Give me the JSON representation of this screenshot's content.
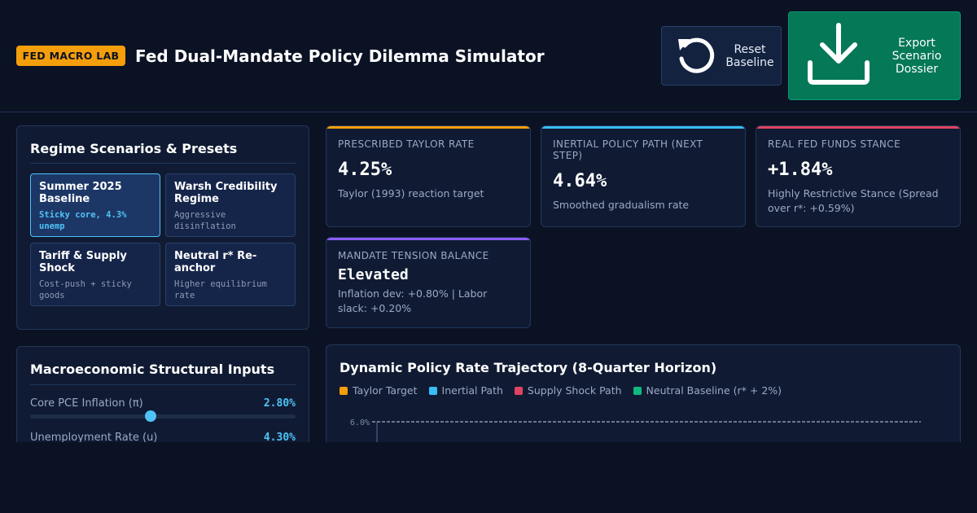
{
  "header": {
    "badge": "FED MACRO LAB",
    "title": "Fed Dual-Mandate Policy Dilemma Simulator",
    "reset_label": "Reset Baseline",
    "export_label": "Export Scenario Dossier"
  },
  "presets": {
    "title": "Regime Scenarios & Presets",
    "items": [
      {
        "name": "Summer 2025 Baseline",
        "desc": "Sticky core, 4.3% unemp",
        "active": true
      },
      {
        "name": "Warsh Credibility Regime",
        "desc": "Aggressive disinflation",
        "active": false
      },
      {
        "name": "Tariff & Supply Shock",
        "desc": "Cost-push + sticky goods",
        "active": false
      },
      {
        "name": "Neutral r* Re-anchor",
        "desc": "Higher equilibrium rate",
        "active": false
      }
    ]
  },
  "metrics": [
    {
      "label": "PRESCRIBED TAYLOR RATE",
      "value": "4.25%",
      "sub": "Taylor (1993) reaction target",
      "color": "#f59e0b"
    },
    {
      "label": "INERTIAL POLICY PATH (NEXT STEP)",
      "value": "4.64%",
      "sub": "Smoothed gradualism rate",
      "color": "#38bdf8"
    },
    {
      "label": "REAL FED FUNDS STANCE",
      "value": "+1.84%",
      "sub": "Highly Restrictive Stance (Spread over r*: +0.59%)",
      "color": "#e0435f"
    },
    {
      "label": "MANDATE TENSION BALANCE",
      "value": "Elevated",
      "sub": "Inflation dev: +0.80% | Labor slack: +0.20%",
      "color": "#8b5cf6"
    }
  ],
  "inputs": {
    "title": "Macroeconomic Structural Inputs",
    "sliders": [
      {
        "label": "Core PCE Inflation (π)",
        "value": "2.80%",
        "level": 0.455
      },
      {
        "label": "Unemployment Rate (u)",
        "value": "4.30%"
      }
    ]
  },
  "chart": {
    "title": "Dynamic Policy Rate Trajectory (8-Quarter Horizon)",
    "legend": [
      {
        "name": "Taylor Target",
        "color": "#f59e0b"
      },
      {
        "name": "Inertial Path",
        "color": "#38bdf8"
      },
      {
        "name": "Supply Shock Path",
        "color": "#e0435f"
      },
      {
        "name": "Neutral Baseline (r* + 2%)",
        "color": "#10b981"
      }
    ],
    "y_tick_top": "6.0%"
  },
  "chart_data": {
    "type": "line",
    "title": "Dynamic Policy Rate Trajectory (8-Quarter Horizon)",
    "series": [
      {
        "name": "Taylor Target",
        "values": []
      },
      {
        "name": "Inertial Path",
        "values": []
      },
      {
        "name": "Supply Shock Path",
        "values": []
      },
      {
        "name": "Neutral Baseline (r* + 2%)",
        "values": []
      }
    ],
    "ytick_labels": [
      "6.0%"
    ],
    "grid": true,
    "legend_position": "top-left"
  },
  "colors": {
    "background": "#0b1224",
    "panel": "#101b33",
    "accent": "#4fc3f7",
    "badge": "#f59e0b",
    "export": "#047857"
  }
}
